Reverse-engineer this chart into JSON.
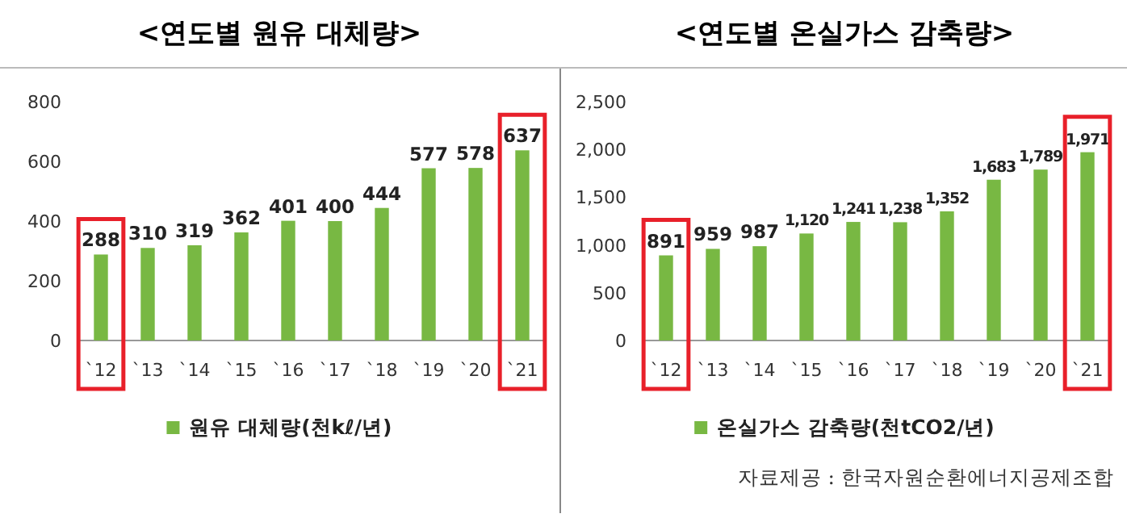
{
  "chart_data": [
    {
      "type": "bar",
      "title": "<연도별 원유 대체량>",
      "categories": [
        "`12",
        "`13",
        "`14",
        "`15",
        "`16",
        "`17",
        "`18",
        "`19",
        "`20",
        "`21"
      ],
      "series": [
        {
          "name": "원유 대체량(천kℓ/년)",
          "color": "#78b843",
          "values": [
            288,
            310,
            319,
            362,
            401,
            400,
            444,
            577,
            578,
            637
          ]
        }
      ],
      "ylim": [
        0,
        800
      ],
      "yticks": [
        0,
        200,
        400,
        600,
        800
      ],
      "grid": false,
      "legend": "bottom",
      "data_labels": true
    },
    {
      "type": "bar",
      "title": "<연도별 온실가스 감축량>",
      "categories": [
        "`12",
        "`13",
        "`14",
        "`15",
        "`16",
        "`17",
        "`18",
        "`19",
        "`20",
        "`21"
      ],
      "series": [
        {
          "name": "온실가스 감축량(천tCO2/년)",
          "color": "#78b843",
          "values": [
            891,
            959,
            987,
            1120,
            1241,
            1238,
            1352,
            1683,
            1789,
            1971
          ],
          "value_labels": [
            "891",
            "959",
            "987",
            "1,120",
            "1,241",
            "1,238",
            "1,352",
            "1,683",
            "1,789",
            "1,971"
          ]
        }
      ],
      "ylim": [
        0,
        2500
      ],
      "yticks": [
        {
          "value": 0,
          "label": "0"
        },
        {
          "value": 500,
          "label": "500"
        },
        {
          "value": 1000,
          "label": "1,000"
        },
        {
          "value": 1500,
          "label": "1,500"
        },
        {
          "value": 2000,
          "label": "2,000"
        },
        {
          "value": 2500,
          "label": "2,500"
        }
      ],
      "grid": false,
      "legend": "bottom",
      "annotations": [
        "자료제공 : 한국자원순환에너지공제조합"
      ]
    }
  ]
}
